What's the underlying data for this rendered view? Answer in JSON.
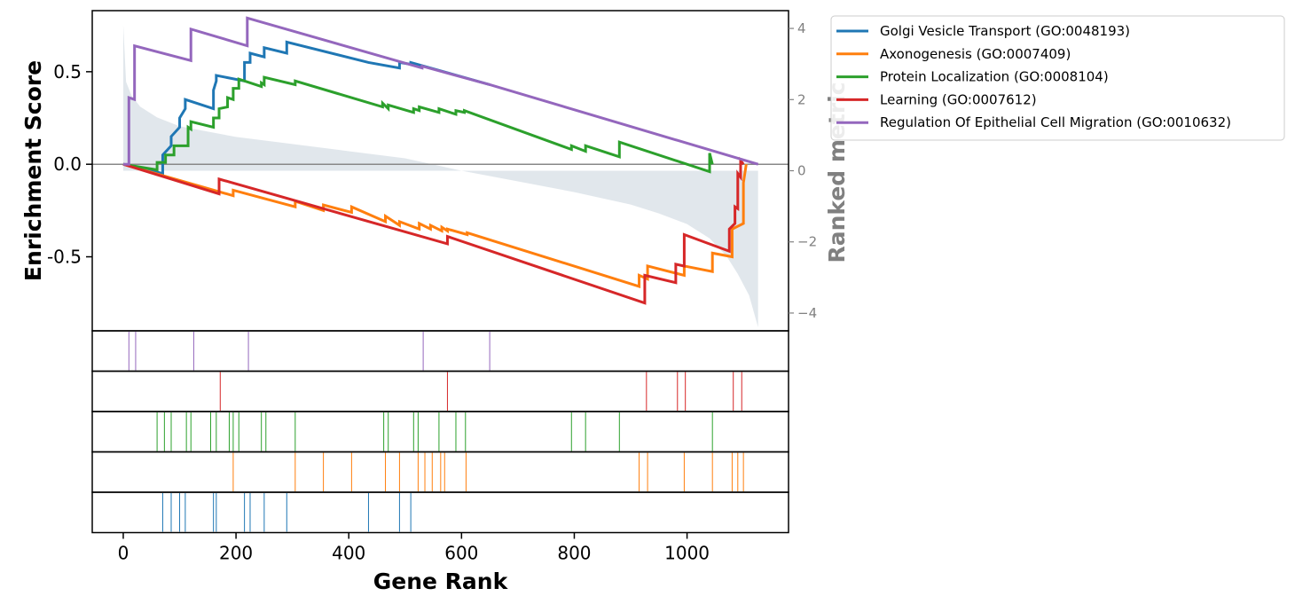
{
  "chart_data": {
    "type": "line",
    "title": "",
    "xlabel": "Gene Rank",
    "ylabel": "Enrichment Score",
    "y2label": "Ranked metric",
    "xlim": [
      -55,
      1180
    ],
    "ylim": [
      -0.9,
      0.83
    ],
    "y2lim": [
      -4.5,
      4.5
    ],
    "xticks": [
      0,
      200,
      400,
      600,
      800,
      1000
    ],
    "yticks": [
      0.5,
      0.0,
      -0.5
    ],
    "ytick_labels": [
      "0.5",
      "0.0",
      "-0.5"
    ],
    "y2ticks": [
      4,
      2,
      0,
      -2,
      -4
    ],
    "y2tick_labels": [
      "4",
      "2",
      "0",
      "−2",
      "−4"
    ],
    "legend_position": "upper-right-outside",
    "gene_count": 1126,
    "ranked_metric": {
      "color": "#c8d3dd",
      "x": [
        0,
        5,
        15,
        30,
        60,
        100,
        150,
        200,
        250,
        300,
        400,
        500,
        600,
        700,
        800,
        900,
        950,
        1000,
        1040,
        1070,
        1090,
        1110,
        1126
      ],
      "y": [
        4.1,
        2.5,
        2.1,
        1.8,
        1.5,
        1.25,
        1.1,
        0.95,
        0.85,
        0.75,
        0.55,
        0.35,
        0.0,
        -0.3,
        -0.6,
        -0.95,
        -1.2,
        -1.5,
        -1.9,
        -2.4,
        -2.9,
        -3.5,
        -4.4
      ]
    },
    "series": [
      {
        "name": "Golgi Vesicle Transport (GO:0048193)",
        "color": "#1f77b4",
        "x": [
          0,
          70,
          70,
          85,
          85,
          100,
          100,
          110,
          110,
          160,
          160,
          165,
          165,
          215,
          215,
          225,
          225,
          250,
          250,
          290,
          290,
          435,
          435,
          490,
          490,
          510,
          510,
          650
        ],
        "y": [
          0,
          -0.05,
          0.05,
          0.1,
          0.15,
          0.2,
          0.25,
          0.3,
          0.35,
          0.3,
          0.4,
          0.45,
          0.48,
          0.45,
          0.55,
          0.55,
          0.6,
          0.58,
          0.63,
          0.6,
          0.66,
          0.55,
          0.55,
          0.52,
          0.55,
          0.54,
          0.55,
          0.43
        ]
      },
      {
        "name": "Axonogenesis (GO:0007409)",
        "color": "#ff7f0e",
        "x": [
          0,
          195,
          195,
          305,
          305,
          355,
          355,
          405,
          405,
          465,
          465,
          490,
          490,
          525,
          525,
          545,
          545,
          565,
          565,
          575,
          575,
          610,
          610,
          915,
          915,
          930,
          930,
          995,
          995,
          1045,
          1045,
          1080,
          1080,
          1100,
          1100,
          1105
        ],
        "y": [
          0,
          -0.17,
          -0.14,
          -0.23,
          -0.2,
          -0.25,
          -0.22,
          -0.26,
          -0.23,
          -0.31,
          -0.28,
          -0.33,
          -0.31,
          -0.35,
          -0.32,
          -0.35,
          -0.33,
          -0.36,
          -0.34,
          -0.36,
          -0.35,
          -0.38,
          -0.37,
          -0.66,
          -0.6,
          -0.62,
          -0.55,
          -0.6,
          -0.55,
          -0.58,
          -0.48,
          -0.5,
          -0.35,
          -0.32,
          -0.1,
          0
        ]
      },
      {
        "name": "Protein Localization (GO:0008104)",
        "color": "#2ca02c",
        "x": [
          0,
          60,
          60,
          75,
          75,
          90,
          90,
          115,
          115,
          120,
          120,
          160,
          160,
          170,
          170,
          185,
          185,
          195,
          195,
          205,
          205,
          245,
          245,
          250,
          250,
          305,
          305,
          460,
          460,
          470,
          470,
          515,
          515,
          525,
          525,
          560,
          560,
          590,
          590,
          605,
          605,
          795,
          795,
          820,
          820,
          880,
          880,
          1040,
          1040,
          1045
        ],
        "y": [
          0,
          -0.03,
          0.01,
          0.01,
          0.05,
          0.05,
          0.1,
          0.1,
          0.2,
          0.19,
          0.23,
          0.2,
          0.25,
          0.25,
          0.3,
          0.31,
          0.36,
          0.35,
          0.41,
          0.41,
          0.46,
          0.42,
          0.44,
          0.43,
          0.47,
          0.43,
          0.45,
          0.31,
          0.33,
          0.3,
          0.32,
          0.28,
          0.3,
          0.29,
          0.31,
          0.28,
          0.3,
          0.27,
          0.29,
          0.28,
          0.29,
          0.08,
          0.1,
          0.07,
          0.1,
          0.04,
          0.12,
          -0.04,
          0.06,
          0
        ]
      },
      {
        "name": "Learning (GO:0007612)",
        "color": "#d62728",
        "x": [
          0,
          170,
          170,
          575,
          575,
          925,
          925,
          980,
          980,
          995,
          995,
          1075,
          1075,
          1085,
          1085,
          1090,
          1090,
          1095,
          1095,
          1100
        ],
        "y": [
          0,
          -0.16,
          -0.08,
          -0.43,
          -0.39,
          -0.75,
          -0.6,
          -0.64,
          -0.54,
          -0.55,
          -0.38,
          -0.47,
          -0.35,
          -0.32,
          -0.23,
          -0.24,
          -0.05,
          -0.07,
          0.02,
          0
        ]
      },
      {
        "name": "Regulation Of Epithelial Cell Migration (GO:0010632)",
        "color": "#9467bd",
        "x": [
          0,
          10,
          10,
          20,
          20,
          120,
          120,
          220,
          220,
          530,
          530,
          650,
          650,
          1126
        ],
        "y": [
          0,
          0,
          0.36,
          0.35,
          0.64,
          0.56,
          0.73,
          0.64,
          0.79,
          0.52,
          0.53,
          0.43,
          0.43,
          0
        ]
      }
    ],
    "gene_hits": [
      {
        "name": "Regulation Of Epithelial Cell Migration (GO:0010632)",
        "color": "#9467bd",
        "positions": [
          10,
          22,
          125,
          222,
          532,
          650
        ]
      },
      {
        "name": "Learning (GO:0007612)",
        "color": "#d62728",
        "positions": [
          172,
          575,
          928,
          983,
          997,
          1082,
          1097
        ]
      },
      {
        "name": "Protein Localization (GO:0008104)",
        "color": "#2ca02c",
        "positions": [
          60,
          73,
          85,
          112,
          120,
          155,
          165,
          188,
          195,
          205,
          245,
          253,
          305,
          462,
          470,
          515,
          523,
          560,
          590,
          607,
          795,
          820,
          880,
          1045
        ]
      },
      {
        "name": "Axonogenesis (GO:0007409)",
        "color": "#ff7f0e",
        "positions": [
          195,
          305,
          355,
          405,
          465,
          490,
          523,
          535,
          548,
          563,
          570,
          608,
          915,
          930,
          995,
          1045,
          1080,
          1090,
          1100
        ]
      },
      {
        "name": "Golgi Vesicle Transport (GO:0048193)",
        "color": "#1f77b4",
        "positions": [
          70,
          85,
          100,
          110,
          160,
          165,
          215,
          225,
          250,
          290,
          435,
          490,
          510
        ]
      }
    ]
  }
}
